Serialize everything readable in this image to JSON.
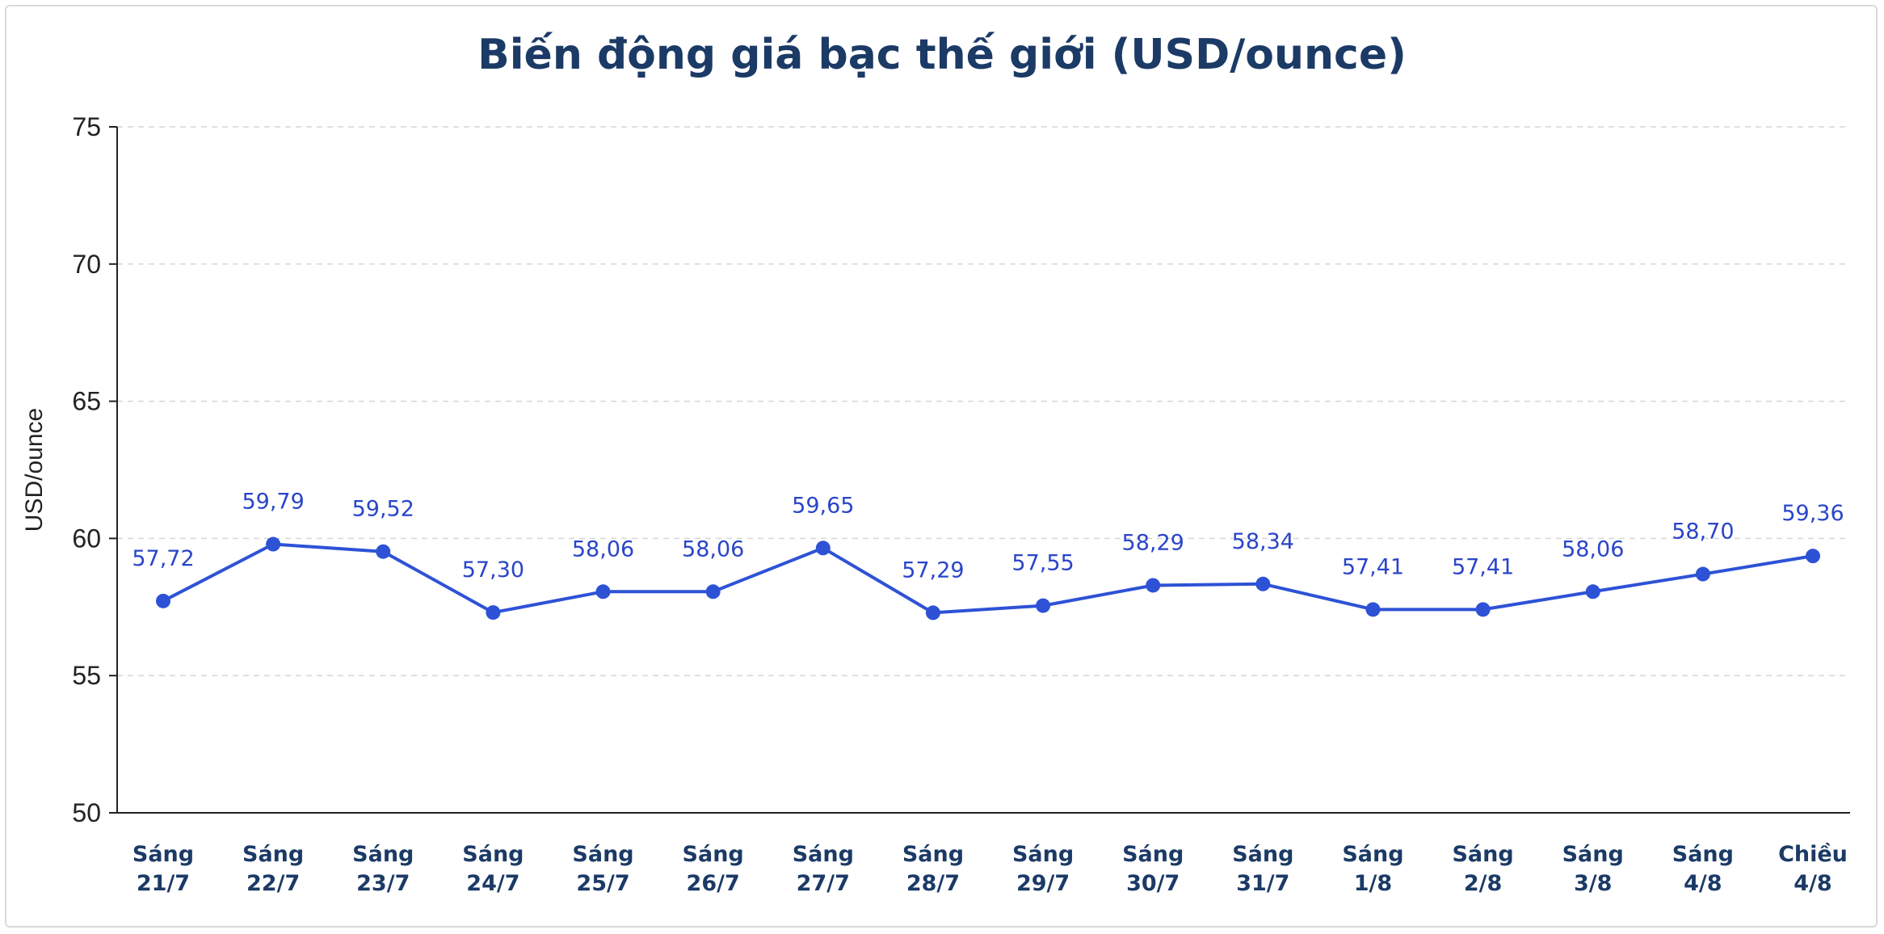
{
  "chart_data": {
    "type": "line",
    "title": "Biến động giá bạc thế giới (USD/ounce)",
    "ylabel": "USD/ounce",
    "xlabel": "",
    "ylim": [
      50,
      75
    ],
    "yticks": [
      "50",
      "55",
      "60",
      "65",
      "70",
      "75"
    ],
    "yticks_values": [
      50,
      55,
      60,
      65,
      70,
      75
    ],
    "grid": true,
    "categories": [
      [
        "Sáng",
        "21/7"
      ],
      [
        "Sáng",
        "22/7"
      ],
      [
        "Sáng",
        "23/7"
      ],
      [
        "Sáng",
        "24/7"
      ],
      [
        "Sáng",
        "25/7"
      ],
      [
        "Sáng",
        "26/7"
      ],
      [
        "Sáng",
        "27/7"
      ],
      [
        "Sáng",
        "28/7"
      ],
      [
        "Sáng",
        "29/7"
      ],
      [
        "Sáng",
        "30/7"
      ],
      [
        "Sáng",
        "31/7"
      ],
      [
        "Sáng",
        "1/8"
      ],
      [
        "Sáng",
        "2/8"
      ],
      [
        "Sáng",
        "3/8"
      ],
      [
        "Sáng",
        "4/8"
      ],
      [
        "Chiều",
        "4/8"
      ]
    ],
    "values": [
      57.72,
      59.79,
      59.52,
      57.3,
      58.06,
      58.06,
      59.65,
      57.29,
      57.55,
      58.29,
      58.34,
      57.41,
      57.41,
      58.06,
      58.7,
      59.36
    ],
    "value_labels": [
      "57,72",
      "59,79",
      "59,52",
      "57,30",
      "58,06",
      "58,06",
      "59,65",
      "57,29",
      "57,55",
      "58,29",
      "58,34",
      "57,41",
      "57,41",
      "58,06",
      "58,70",
      "59,36"
    ],
    "colors": {
      "series": "#2e52d6",
      "labels": "#2a45c9",
      "title": "#1b3a66"
    }
  }
}
